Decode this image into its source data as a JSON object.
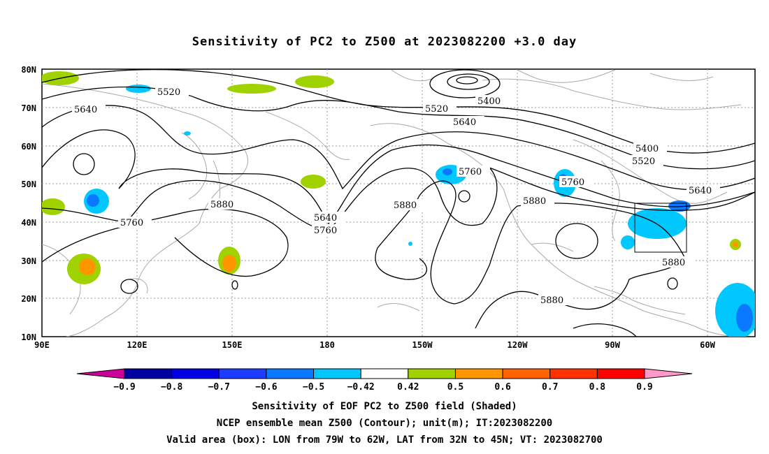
{
  "title": "Sensitivity of PC2 to Z500 at 2023082200 +3.0 day",
  "map": {
    "lat_labels": [
      "80N",
      "70N",
      "60N",
      "50N",
      "40N",
      "30N",
      "20N",
      "10N"
    ],
    "lon_labels": [
      "90E",
      "120E",
      "150E",
      "180",
      "150W",
      "120W",
      "90W",
      "60W"
    ],
    "contour_labels": [
      "5520",
      "5640",
      "5760",
      "5880",
      "5640",
      "5760",
      "5880",
      "5520",
      "5400",
      "5640",
      "5400",
      "5520",
      "5760",
      "5880",
      "5760",
      "5640",
      "5880",
      "5880"
    ],
    "valid_box": {
      "lon_from": "79W",
      "lon_to": "62W",
      "lat_from": "32N",
      "lat_to": "45N"
    }
  },
  "colorbar": {
    "labels": [
      "-0.9",
      "-0.8",
      "-0.7",
      "-0.6",
      "-0.5",
      "-0.42",
      "0.42",
      "0.5",
      "0.6",
      "0.7",
      "0.8",
      "0.9"
    ],
    "colors": [
      "#cc0099",
      "#0000a0",
      "#0000e0",
      "#1e3cff",
      "#0a78ff",
      "#00c8ff",
      "#ffffff",
      "#a0d200",
      "#ff9600",
      "#ff6400",
      "#ff3200",
      "#ff0000",
      "#ff99cc"
    ]
  },
  "captions": {
    "line1": "Sensitivity of EOF PC2 to Z500 field (Shaded)",
    "line2": "NCEP ensemble mean Z500 (Contour); unit(m); IT:2023082200",
    "line3": "Valid area (box): LON from 79W to 62W, LAT from 32N to 45N; VT: 2023082700"
  }
}
